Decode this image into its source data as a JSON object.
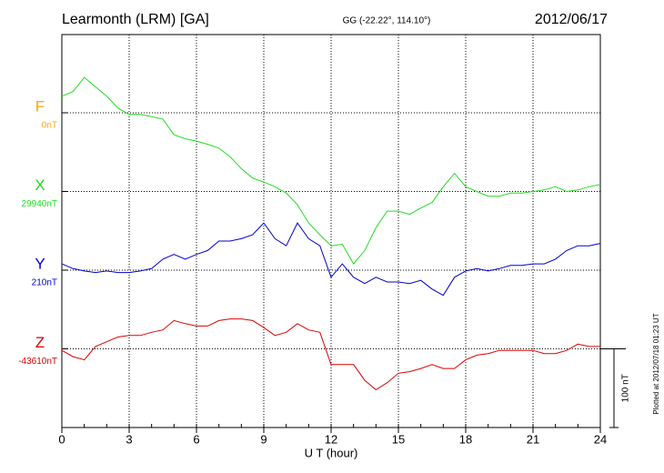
{
  "chart_data": {
    "type": "line",
    "title": "Learmonth (LRM)  [GA]",
    "subtitle": "GG (-22.22°, 114.10°)",
    "date": "2012/06/17",
    "footnote": "Plotted at 2012/07/18 01:23 UT",
    "xlabel": "U T (hour)",
    "xlim": [
      0,
      24
    ],
    "xticks": [
      0,
      3,
      6,
      9,
      12,
      15,
      18,
      21,
      24
    ],
    "grid": true,
    "scale": {
      "value": 100,
      "label": "100 nT"
    },
    "x": [
      0,
      0.5,
      1,
      1.5,
      2,
      2.5,
      3,
      3.5,
      4,
      4.5,
      5,
      5.5,
      6,
      6.5,
      7,
      7.5,
      8,
      8.5,
      9,
      9.5,
      10,
      10.5,
      11,
      11.5,
      12,
      12.5,
      13,
      13.5,
      14,
      14.5,
      15,
      15.5,
      16,
      16.5,
      17,
      17.5,
      18,
      18.5,
      19,
      19.5,
      20,
      20.5,
      21,
      21.5,
      22,
      22.5,
      23,
      23.5,
      24
    ],
    "series": [
      {
        "name": "F",
        "color": "#ffa500",
        "baseline": {
          "value": 0,
          "label": "0nT"
        }
      },
      {
        "name": "X",
        "color": "#22dd22",
        "baseline": {
          "value": 29940,
          "label": "29940nT"
        },
        "values": [
          30061,
          30067,
          30085,
          30073,
          30061,
          30046,
          30038,
          30038,
          30035,
          30032,
          30012,
          30007,
          30004,
          30000,
          29995,
          29984,
          29969,
          29957,
          29952,
          29946,
          29938,
          29923,
          29900,
          29885,
          29871,
          29873,
          29848,
          29865,
          29894,
          29915,
          29915,
          29911,
          29919,
          29926,
          29946,
          29963,
          29946,
          29940,
          29934,
          29934,
          29938,
          29938,
          29940,
          29942,
          29946,
          29940,
          29942,
          29946,
          29949
        ]
      },
      {
        "name": "Y",
        "color": "#0000cc",
        "baseline": {
          "value": 210,
          "label": "210nT"
        },
        "values": [
          218,
          212,
          209,
          207,
          209,
          207,
          207,
          209,
          212,
          224,
          230,
          224,
          230,
          235,
          247,
          247,
          250,
          255,
          270,
          250,
          241,
          270,
          250,
          241,
          201,
          218,
          201,
          193,
          201,
          195,
          195,
          193,
          197,
          186,
          178,
          201,
          209,
          212,
          209,
          212,
          216,
          216,
          218,
          218,
          224,
          235,
          241,
          241,
          244
        ]
      },
      {
        "name": "Z",
        "color": "#dd0000",
        "baseline": {
          "value": -43610,
          "label": "-43610nT"
        },
        "values": [
          -43612,
          -43620,
          -43624,
          -43607,
          -43601,
          -43595,
          -43593,
          -43593,
          -43589,
          -43586,
          -43574,
          -43578,
          -43581,
          -43581,
          -43574,
          -43572,
          -43572,
          -43574,
          -43583,
          -43593,
          -43589,
          -43578,
          -43586,
          -43589,
          -43630,
          -43630,
          -43630,
          -43650,
          -43662,
          -43653,
          -43641,
          -43639,
          -43635,
          -43630,
          -43635,
          -43635,
          -43624,
          -43618,
          -43616,
          -43612,
          -43612,
          -43612,
          -43612,
          -43616,
          -43616,
          -43612,
          -43604,
          -43607,
          -43607
        ]
      }
    ]
  }
}
